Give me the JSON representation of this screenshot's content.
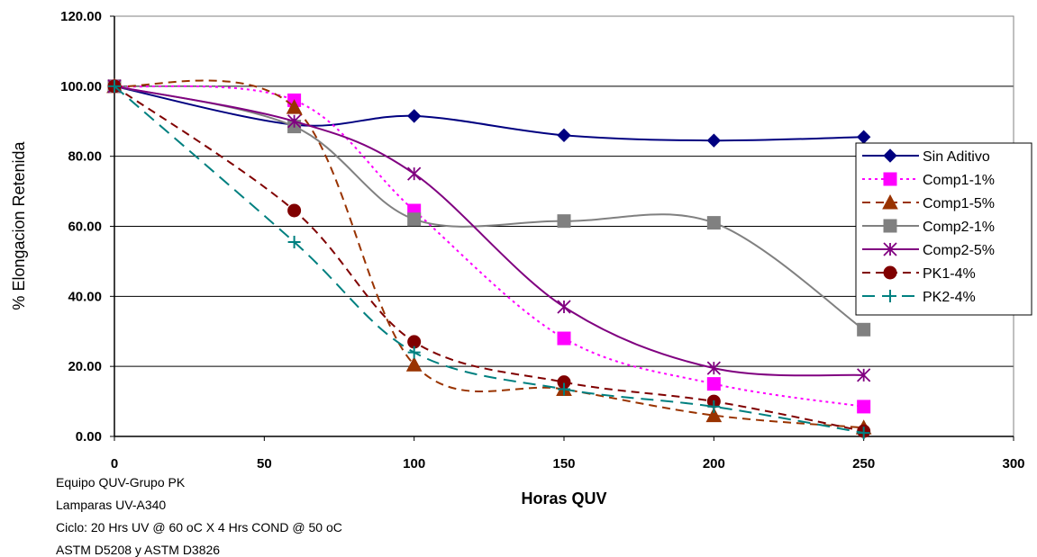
{
  "chart_data": {
    "type": "line",
    "title": "",
    "xlabel": "Horas QUV",
    "ylabel": "% Elongacion Retenida",
    "xlim": [
      0,
      300
    ],
    "ylim": [
      0,
      120
    ],
    "x_ticks": [
      "0",
      "50",
      "100",
      "150",
      "200",
      "250",
      "300"
    ],
    "y_ticks": [
      "0.00",
      "20.00",
      "40.00",
      "60.00",
      "80.00",
      "100.00",
      "120.00"
    ],
    "grid": "horizontal",
    "legend_position": "right",
    "x": [
      0,
      60,
      100,
      150,
      200,
      250
    ],
    "series": [
      {
        "name": "Sin Aditivo",
        "values": [
          100.0,
          89.0,
          91.5,
          86.0,
          84.5,
          85.5
        ],
        "color": "#000080",
        "marker": "diamond",
        "dash": "solid"
      },
      {
        "name": "Comp1-1%",
        "values": [
          100.0,
          96.0,
          64.5,
          28.0,
          15.0,
          8.5
        ],
        "color": "#FF00FF",
        "marker": "square",
        "dash": "dotted"
      },
      {
        "name": "Comp1-5%",
        "values": [
          100.0,
          94.0,
          20.5,
          13.5,
          6.0,
          2.5
        ],
        "color": "#993300",
        "marker": "triangle",
        "dash": "dashed"
      },
      {
        "name": "Comp2-1%",
        "values": [
          100.0,
          88.5,
          62.0,
          61.5,
          61.0,
          30.5
        ],
        "color": "#808080",
        "marker": "square",
        "dash": "solid"
      },
      {
        "name": "Comp2-5%",
        "values": [
          100.0,
          90.0,
          75.0,
          37.0,
          19.5,
          17.5
        ],
        "color": "#800080",
        "marker": "asterisk",
        "dash": "solid"
      },
      {
        "name": "PK1-4%",
        "values": [
          100.0,
          64.5,
          27.0,
          15.5,
          10.0,
          1.5
        ],
        "color": "#800000",
        "marker": "circle",
        "dash": "dashed"
      },
      {
        "name": "PK2-4%",
        "values": [
          100.0,
          55.5,
          24.0,
          13.5,
          8.5,
          1.0
        ],
        "color": "#008080",
        "marker": "plus",
        "dash": "longdash"
      }
    ],
    "notes": [
      "Equipo QUV-Grupo PK",
      "Lamparas UV-A340",
      "Ciclo: 20 Hrs UV @ 60 oC X 4 Hrs COND @ 50 oC",
      "ASTM D5208  y   ASTM D3826"
    ]
  }
}
